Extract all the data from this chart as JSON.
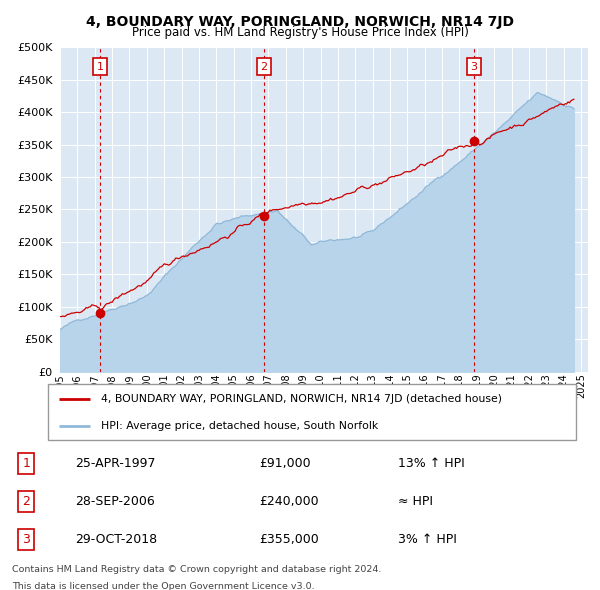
{
  "title": "4, BOUNDARY WAY, PORINGLAND, NORWICH, NR14 7JD",
  "subtitle": "Price paid vs. HM Land Registry's House Price Index (HPI)",
  "ylim": [
    0,
    500000
  ],
  "yticks": [
    0,
    50000,
    100000,
    150000,
    200000,
    250000,
    300000,
    350000,
    400000,
    450000,
    500000
  ],
  "xlim_start": 1995.0,
  "xlim_end": 2025.4,
  "plot_bg": "#dce9f5",
  "grid_color": "#ffffff",
  "sale_color": "#cc0000",
  "hpi_color": "#90b8d8",
  "hpi_fill_color": "#b8d4ea",
  "legend_sale": "4, BOUNDARY WAY, PORINGLAND, NORWICH, NR14 7JD (detached house)",
  "legend_hpi": "HPI: Average price, detached house, South Norfolk",
  "transactions": [
    {
      "num": 1,
      "date_str": "25-APR-1997",
      "price": 91000,
      "hpi_note": "13% ↑ HPI",
      "x": 1997.32
    },
    {
      "num": 2,
      "date_str": "28-SEP-2006",
      "price": 240000,
      "hpi_note": "≈ HPI",
      "x": 2006.75
    },
    {
      "num": 3,
      "date_str": "29-OCT-2018",
      "price": 355000,
      "hpi_note": "3% ↑ HPI",
      "x": 2018.83
    }
  ],
  "footer1": "Contains HM Land Registry data © Crown copyright and database right 2024.",
  "footer2": "This data is licensed under the Open Government Licence v3.0."
}
